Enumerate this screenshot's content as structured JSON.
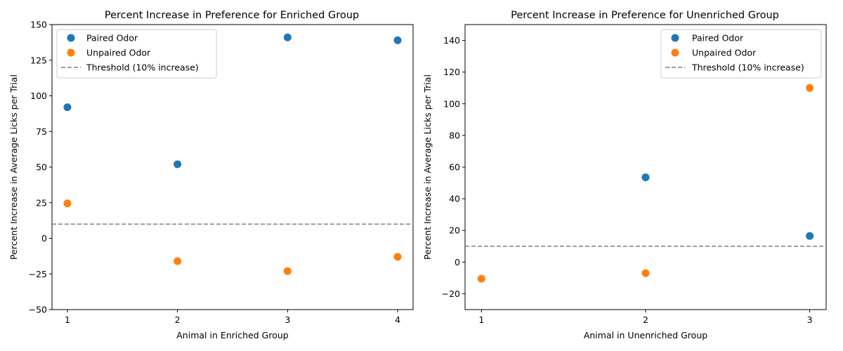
{
  "chart_data": [
    {
      "type": "scatter",
      "title": "Percent Increase in Preference for Enriched Group",
      "xlabel": "Animal in Enriched Group",
      "ylabel": "Percent Increase in Average Licks per Trial",
      "categories": [
        1,
        2,
        3,
        4
      ],
      "xtick_labels": [
        "1",
        "2",
        "3",
        "4"
      ],
      "ylim": [
        -50,
        150
      ],
      "yticks": [
        -50,
        -25,
        0,
        25,
        50,
        75,
        100,
        125,
        150
      ],
      "ytick_labels": [
        "−50",
        "−25",
        "0",
        "25",
        "50",
        "75",
        "100",
        "125",
        "150"
      ],
      "series": [
        {
          "name": "Paired Odor",
          "color": "#1f77b4",
          "x": [
            1,
            2,
            3,
            4
          ],
          "values": [
            92,
            52,
            141,
            139
          ]
        },
        {
          "name": "Unpaired Odor",
          "color": "#ff7f0e",
          "x": [
            1,
            2,
            3,
            4
          ],
          "values": [
            24.5,
            -16,
            -23,
            -13
          ]
        }
      ],
      "threshold": {
        "label": "Threshold (10% increase)",
        "value": 10,
        "color": "#808080"
      },
      "legend_position": "top-left"
    },
    {
      "type": "scatter",
      "title": "Percent Increase in Preference for Unenriched Group",
      "xlabel": "Animal in Unenriched Group",
      "ylabel": "Percent Increase in Average Licks per Trial",
      "categories": [
        1,
        2,
        3
      ],
      "xtick_labels": [
        "1",
        "2",
        "3"
      ],
      "ylim": [
        -30,
        150
      ],
      "yticks": [
        -20,
        0,
        20,
        40,
        60,
        80,
        100,
        120,
        140
      ],
      "ytick_labels": [
        "−20",
        "0",
        "20",
        "40",
        "60",
        "80",
        "100",
        "120",
        "140"
      ],
      "series": [
        {
          "name": "Paired Odor",
          "color": "#1f77b4",
          "x": [
            2,
            3
          ],
          "values": [
            53.5,
            16.5
          ]
        },
        {
          "name": "Unpaired Odor",
          "color": "#ff7f0e",
          "x": [
            1,
            2,
            3
          ],
          "values": [
            -10.5,
            -7,
            110
          ]
        }
      ],
      "threshold": {
        "label": "Threshold (10% increase)",
        "value": 10,
        "color": "#808080"
      },
      "legend_position": "top-right"
    }
  ]
}
